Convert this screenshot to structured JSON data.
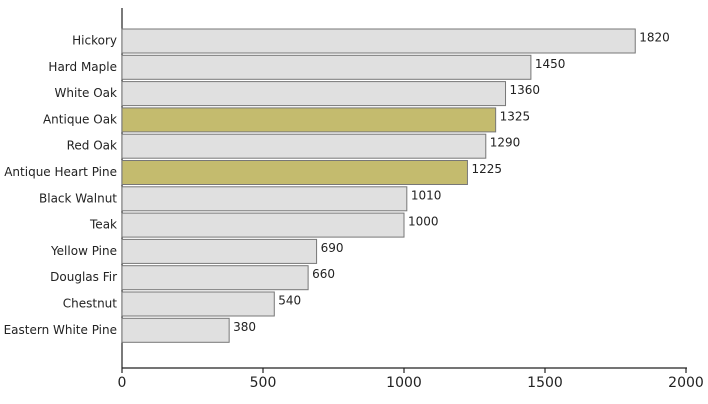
{
  "chart_data": {
    "type": "hbar",
    "categories": [
      "Hickory",
      "Hard Maple",
      "White Oak",
      "Antique Oak",
      "Red Oak",
      "Antique Heart Pine",
      "Black Walnut",
      "Teak",
      "Yellow Pine",
      "Douglas Fir",
      "Chestnut",
      "Eastern White Pine"
    ],
    "values": [
      1820,
      1450,
      1360,
      1325,
      1290,
      1225,
      1010,
      1000,
      690,
      660,
      540,
      380
    ],
    "colors": [
      "#e0e0e0",
      "#e0e0e0",
      "#e0e0e0",
      "#c4bb6e",
      "#e0e0e0",
      "#c4bb6e",
      "#e0e0e0",
      "#e0e0e0",
      "#e0e0e0",
      "#e0e0e0",
      "#e0e0e0",
      "#e0e0e0"
    ],
    "xlim": [
      0,
      2000
    ],
    "xticks": [
      0,
      500,
      1000,
      1500,
      2000
    ],
    "grid": false
  }
}
